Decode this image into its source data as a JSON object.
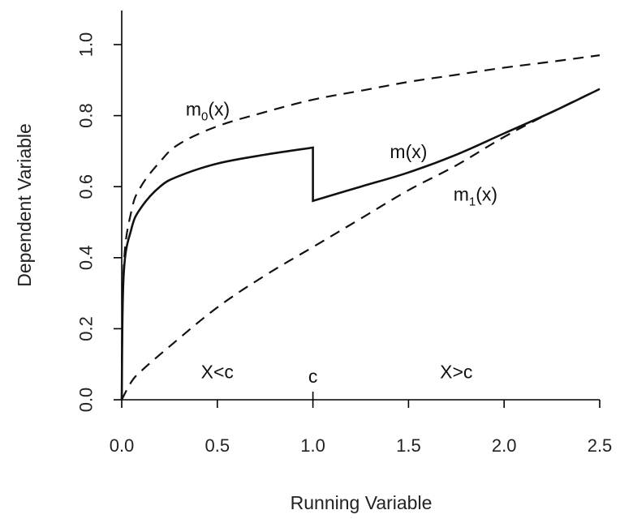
{
  "chart_data": {
    "type": "line",
    "title": "",
    "xlabel": "Running Variable",
    "ylabel": "Dependent Variable",
    "xlim": [
      0,
      2.5
    ],
    "ylim": [
      0,
      1.0
    ],
    "xticks": [
      0.0,
      0.5,
      1.0,
      1.5,
      2.0,
      2.5
    ],
    "xtick_labels": [
      "0.0",
      "0.5",
      "1.0",
      "1.5",
      "2.0",
      "2.5"
    ],
    "yticks": [
      0.0,
      0.2,
      0.4,
      0.6,
      0.8,
      1.0
    ],
    "ytick_labels": [
      "0.0",
      "0.2",
      "0.4",
      "0.6",
      "0.8",
      "1.0"
    ],
    "cutoff": {
      "x": 1.0,
      "label": "c"
    },
    "region_labels": [
      {
        "text": "X<c",
        "x": 0.5,
        "y": 0.06
      },
      {
        "text": "X>c",
        "x": 1.75,
        "y": 0.06
      }
    ],
    "series": [
      {
        "name": "m0(x)",
        "label_base": "m",
        "label_sub": "0",
        "label_tail": "(x)",
        "label_pos": {
          "x": 0.45,
          "y": 0.8
        },
        "style": "dashed",
        "x": [
          0,
          0.01,
          0.05,
          0.1,
          0.2,
          0.3,
          0.5,
          0.75,
          1.0,
          1.25,
          1.5,
          1.75,
          2.0,
          2.25,
          2.5
        ],
        "y": [
          0,
          0.37,
          0.53,
          0.6,
          0.67,
          0.72,
          0.77,
          0.81,
          0.845,
          0.87,
          0.895,
          0.915,
          0.935,
          0.952,
          0.97
        ]
      },
      {
        "name": "m(x)",
        "label_base": "m",
        "label_sub": "",
        "label_tail": "(x)",
        "label_pos": {
          "x": 1.5,
          "y": 0.68
        },
        "style": "solid",
        "x": [
          0,
          0.01,
          0.05,
          0.1,
          0.2,
          0.3,
          0.5,
          0.75,
          1.0,
          1.0,
          1.25,
          1.5,
          1.75,
          2.0,
          2.25,
          2.5
        ],
        "y": [
          0,
          0.35,
          0.48,
          0.54,
          0.6,
          0.63,
          0.665,
          0.69,
          0.71,
          0.56,
          0.6,
          0.64,
          0.69,
          0.75,
          0.81,
          0.875
        ]
      },
      {
        "name": "m1(x)",
        "label_base": "m",
        "label_sub": "1",
        "label_tail": "(x)",
        "label_pos": {
          "x": 1.85,
          "y": 0.56
        },
        "style": "dashed",
        "x": [
          0,
          0.05,
          0.1,
          0.25,
          0.5,
          0.75,
          1.0,
          1.25,
          1.5,
          1.75,
          2.0,
          2.25,
          2.5
        ],
        "y": [
          0,
          0.05,
          0.08,
          0.15,
          0.26,
          0.35,
          0.43,
          0.51,
          0.59,
          0.66,
          0.74,
          0.81,
          0.875
        ]
      }
    ]
  }
}
